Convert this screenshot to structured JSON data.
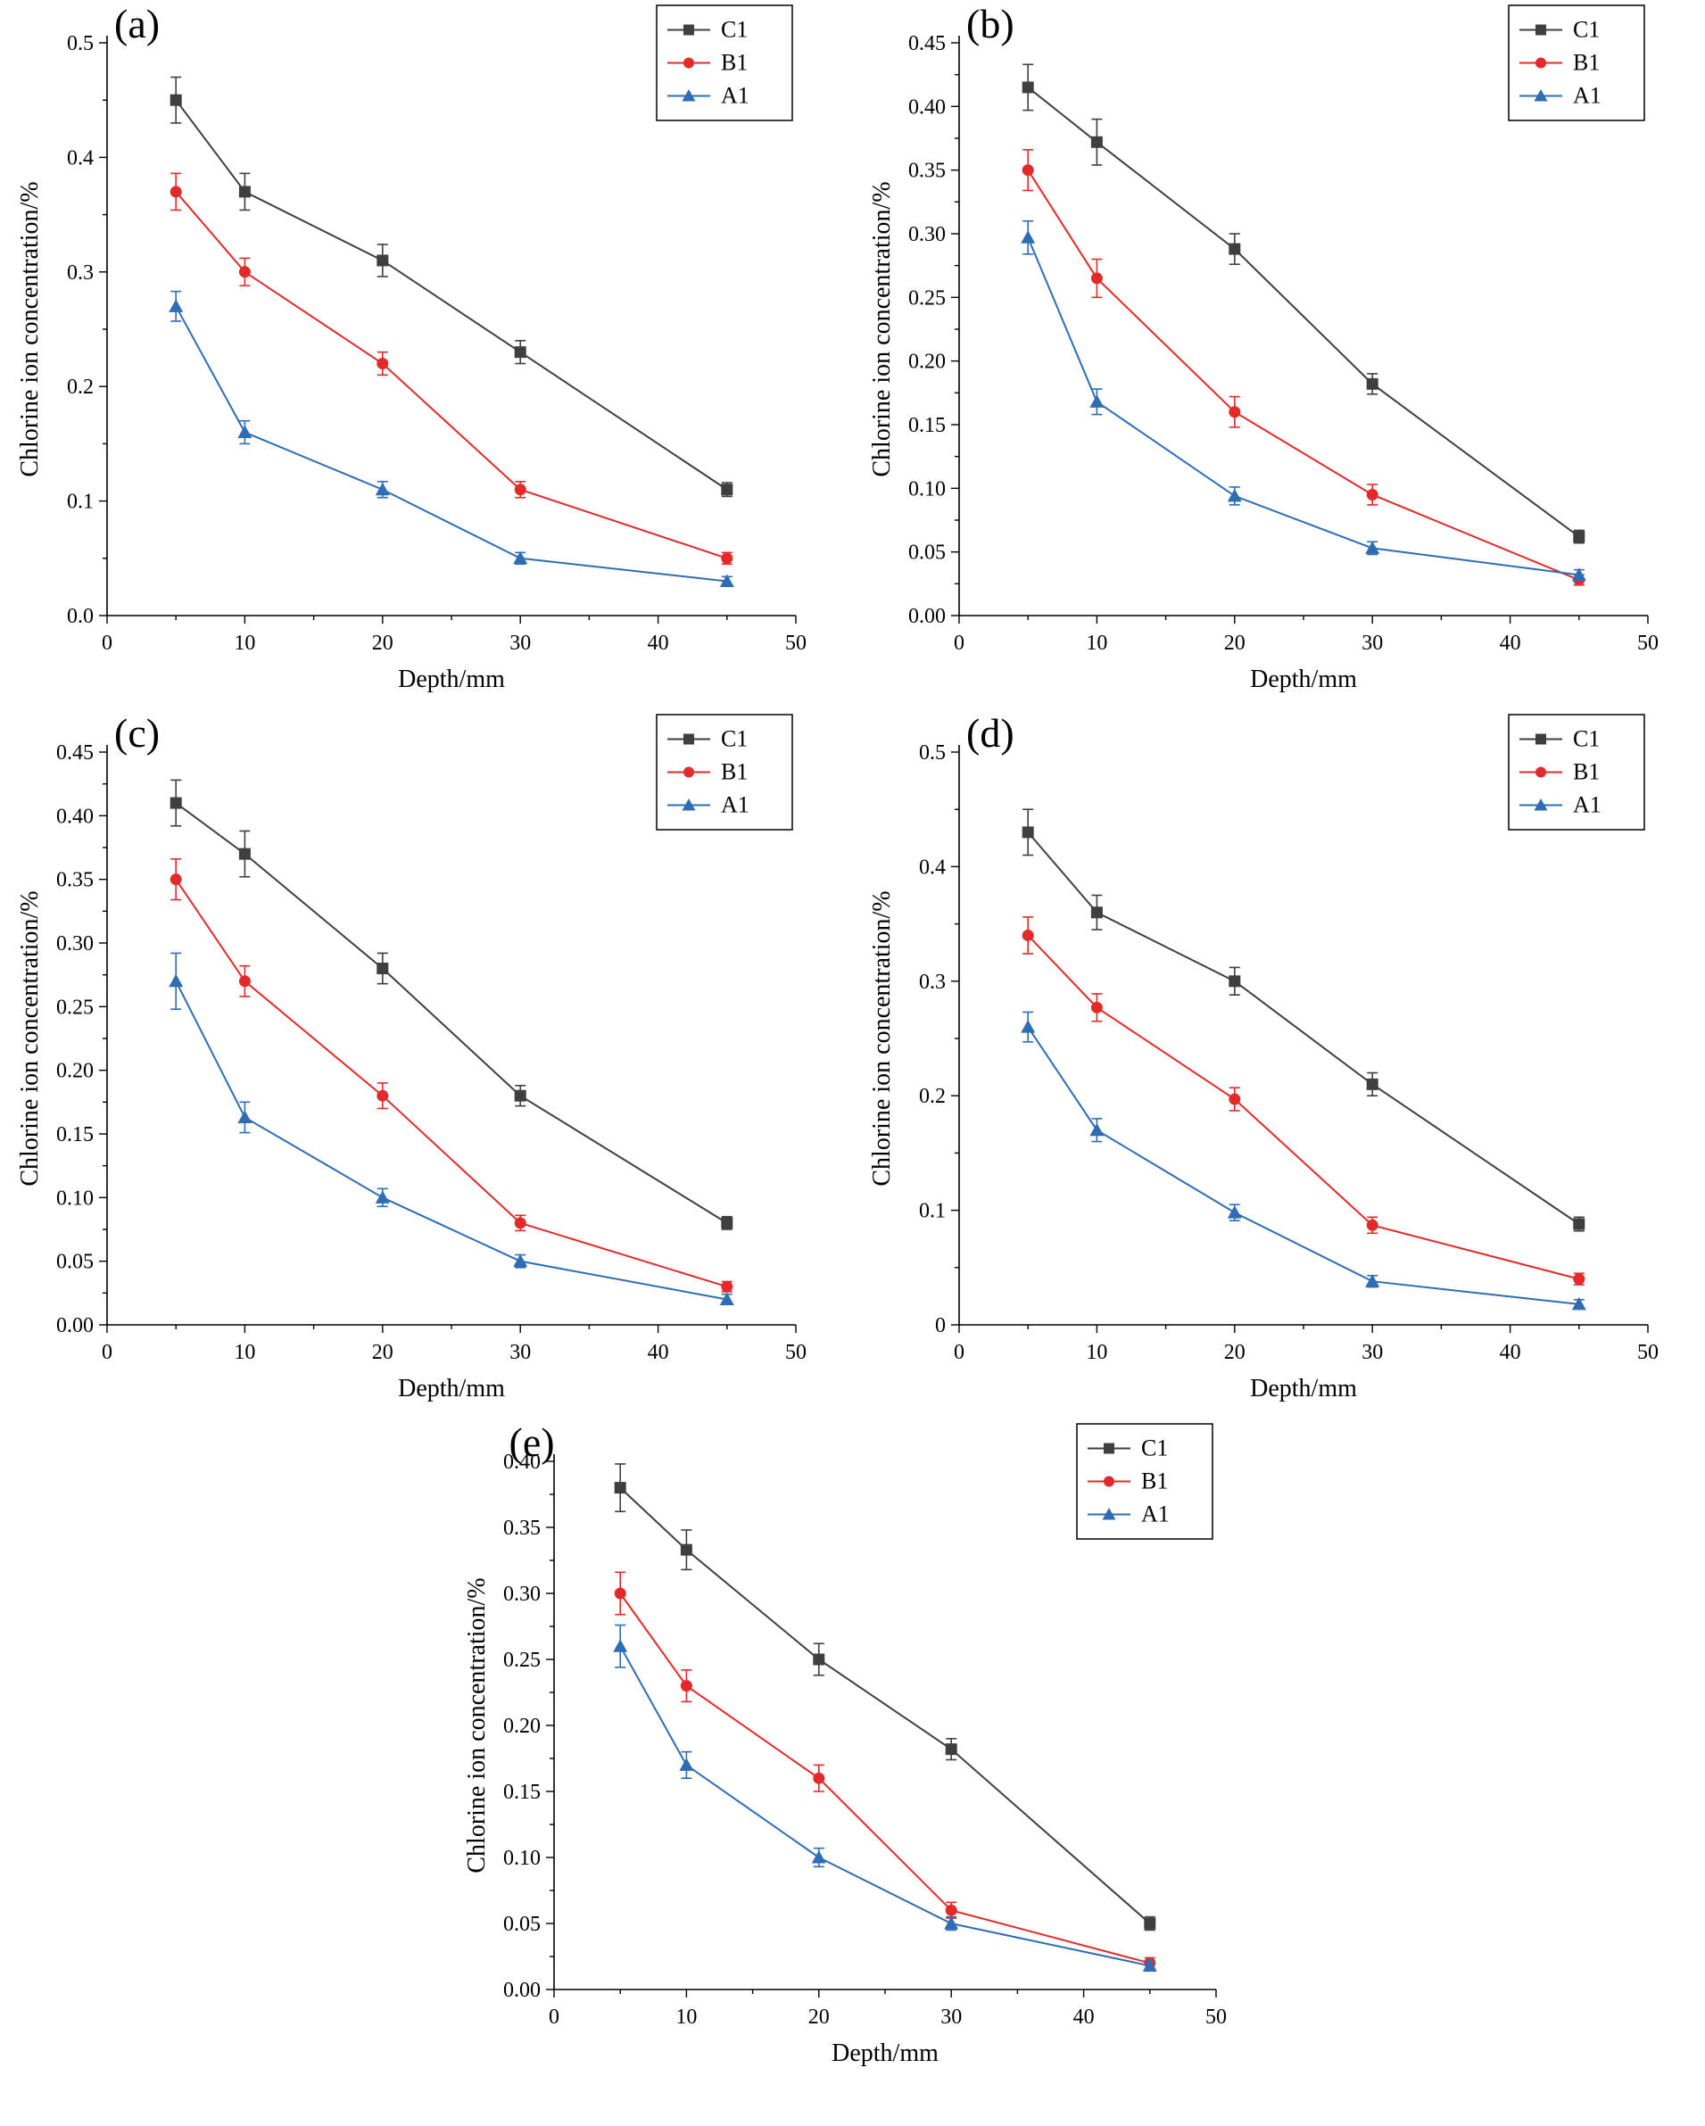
{
  "figure_note": "Chlorine ion concentration vs depth, five panels (a)-(e), series C1/B1/A1 with error bars",
  "colors": {
    "C1": "#3f3f3f",
    "B1": "#e22a2a",
    "A1": "#2e6db4",
    "axis": "#000000"
  },
  "chart_data": [
    {
      "id": "a",
      "panel_label": "(a)",
      "type": "line",
      "xlabel": "Depth/mm",
      "ylabel": "Chlorine ion concentration/%",
      "xlim": [
        0,
        50
      ],
      "ylim": [
        0,
        0.5
      ],
      "xticks": [
        0,
        10,
        20,
        30,
        40,
        50
      ],
      "xtick_labels": [
        "0",
        "10",
        "20",
        "30",
        "40",
        "50"
      ],
      "yticks": [
        0.0,
        0.1,
        0.2,
        0.3,
        0.4,
        0.5
      ],
      "ytick_labels": [
        "0.0",
        "0.1",
        "0.2",
        "0.3",
        "0.4",
        "0.5"
      ],
      "grid": false,
      "legend_position": "top-right",
      "x": [
        5,
        10,
        20,
        30,
        45
      ],
      "series": [
        {
          "name": "C1",
          "marker": "square",
          "color": "#3f3f3f",
          "values": [
            0.45,
            0.37,
            0.31,
            0.23,
            0.11
          ],
          "errors": [
            0.02,
            0.016,
            0.014,
            0.01,
            0.006
          ]
        },
        {
          "name": "B1",
          "marker": "circle",
          "color": "#e22a2a",
          "values": [
            0.37,
            0.3,
            0.22,
            0.11,
            0.05
          ],
          "errors": [
            0.016,
            0.012,
            0.01,
            0.007,
            0.005
          ]
        },
        {
          "name": "A1",
          "marker": "triangle",
          "color": "#2e6db4",
          "values": [
            0.27,
            0.16,
            0.11,
            0.05,
            0.03
          ],
          "errors": [
            0.013,
            0.01,
            0.007,
            0.005,
            0.004
          ]
        }
      ]
    },
    {
      "id": "b",
      "panel_label": "(b)",
      "type": "line",
      "xlabel": "Depth/mm",
      "ylabel": "Chlorine ion concentration/%",
      "xlim": [
        0,
        50
      ],
      "ylim": [
        0,
        0.45
      ],
      "xticks": [
        0,
        10,
        20,
        30,
        40,
        50
      ],
      "xtick_labels": [
        "0",
        "10",
        "20",
        "30",
        "40",
        "50"
      ],
      "yticks": [
        0.0,
        0.05,
        0.1,
        0.15,
        0.2,
        0.25,
        0.3,
        0.35,
        0.4,
        0.45
      ],
      "ytick_labels": [
        "0.00",
        "0.05",
        "0.10",
        "0.15",
        "0.20",
        "0.25",
        "0.30",
        "0.35",
        "0.40",
        "0.45"
      ],
      "grid": false,
      "legend_position": "top-right",
      "x": [
        5,
        10,
        20,
        30,
        45
      ],
      "series": [
        {
          "name": "C1",
          "marker": "square",
          "color": "#3f3f3f",
          "values": [
            0.415,
            0.372,
            0.288,
            0.182,
            0.062
          ],
          "errors": [
            0.018,
            0.018,
            0.012,
            0.008,
            0.005
          ]
        },
        {
          "name": "B1",
          "marker": "circle",
          "color": "#e22a2a",
          "values": [
            0.35,
            0.265,
            0.16,
            0.095,
            0.028
          ],
          "errors": [
            0.016,
            0.015,
            0.012,
            0.008,
            0.004
          ]
        },
        {
          "name": "A1",
          "marker": "triangle",
          "color": "#2e6db4",
          "values": [
            0.297,
            0.168,
            0.094,
            0.053,
            0.032
          ],
          "errors": [
            0.013,
            0.01,
            0.007,
            0.005,
            0.004
          ]
        }
      ]
    },
    {
      "id": "c",
      "panel_label": "(c)",
      "type": "line",
      "xlabel": "Depth/mm",
      "ylabel": "Chlorine ion concentration/%",
      "xlim": [
        0,
        50
      ],
      "ylim": [
        0,
        0.45
      ],
      "xticks": [
        0,
        10,
        20,
        30,
        40,
        50
      ],
      "xtick_labels": [
        "0",
        "10",
        "20",
        "30",
        "40",
        "50"
      ],
      "yticks": [
        0.0,
        0.05,
        0.1,
        0.15,
        0.2,
        0.25,
        0.3,
        0.35,
        0.4,
        0.45
      ],
      "ytick_labels": [
        "0.00",
        "0.05",
        "0.10",
        "0.15",
        "0.20",
        "0.25",
        "0.30",
        "0.35",
        "0.40",
        "0.45"
      ],
      "grid": false,
      "legend_position": "top-right",
      "x": [
        5,
        10,
        20,
        30,
        45
      ],
      "series": [
        {
          "name": "C1",
          "marker": "square",
          "color": "#3f3f3f",
          "values": [
            0.41,
            0.37,
            0.28,
            0.18,
            0.08
          ],
          "errors": [
            0.018,
            0.018,
            0.012,
            0.008,
            0.005
          ]
        },
        {
          "name": "B1",
          "marker": "circle",
          "color": "#e22a2a",
          "values": [
            0.35,
            0.27,
            0.18,
            0.08,
            0.03
          ],
          "errors": [
            0.016,
            0.012,
            0.01,
            0.006,
            0.004
          ]
        },
        {
          "name": "A1",
          "marker": "triangle",
          "color": "#2e6db4",
          "values": [
            0.27,
            0.163,
            0.1,
            0.05,
            0.02
          ],
          "errors": [
            0.022,
            0.012,
            0.007,
            0.005,
            0.004
          ]
        }
      ]
    },
    {
      "id": "d",
      "panel_label": "(d)",
      "type": "line",
      "xlabel": "Depth/mm",
      "ylabel": "Chlorine ion concentration/%",
      "xlim": [
        0,
        50
      ],
      "ylim": [
        0,
        0.5
      ],
      "xticks": [
        0,
        10,
        20,
        30,
        40,
        50
      ],
      "xtick_labels": [
        "0",
        "10",
        "20",
        "30",
        "40",
        "50"
      ],
      "yticks": [
        0.0,
        0.1,
        0.2,
        0.3,
        0.4,
        0.5
      ],
      "ytick_labels": [
        "0",
        "0.1",
        "0.2",
        "0.3",
        "0.4",
        "0.5"
      ],
      "grid": false,
      "legend_position": "top-right",
      "x": [
        5,
        10,
        20,
        30,
        45
      ],
      "series": [
        {
          "name": "C1",
          "marker": "square",
          "color": "#3f3f3f",
          "values": [
            0.43,
            0.36,
            0.3,
            0.21,
            0.088
          ],
          "errors": [
            0.02,
            0.015,
            0.012,
            0.01,
            0.006
          ]
        },
        {
          "name": "B1",
          "marker": "circle",
          "color": "#e22a2a",
          "values": [
            0.34,
            0.277,
            0.197,
            0.087,
            0.04
          ],
          "errors": [
            0.016,
            0.012,
            0.01,
            0.007,
            0.005
          ]
        },
        {
          "name": "A1",
          "marker": "triangle",
          "color": "#2e6db4",
          "values": [
            0.26,
            0.17,
            0.098,
            0.038,
            0.018
          ],
          "errors": [
            0.013,
            0.01,
            0.007,
            0.005,
            0.004
          ]
        }
      ]
    },
    {
      "id": "e",
      "panel_label": "(e)",
      "type": "line",
      "xlabel": "Depth/mm",
      "ylabel": "Chlorine ion concentration/%",
      "xlim": [
        0,
        50
      ],
      "ylim": [
        0,
        0.4
      ],
      "xticks": [
        0,
        10,
        20,
        30,
        40,
        50
      ],
      "xtick_labels": [
        "0",
        "10",
        "20",
        "30",
        "40",
        "50"
      ],
      "yticks": [
        0.0,
        0.05,
        0.1,
        0.15,
        0.2,
        0.25,
        0.3,
        0.35,
        0.4
      ],
      "ytick_labels": [
        "0.00",
        "0.05",
        "0.10",
        "0.15",
        "0.20",
        "0.25",
        "0.30",
        "0.35",
        "0.40"
      ],
      "grid": false,
      "legend_position": "top-right",
      "x": [
        5,
        10,
        20,
        30,
        45
      ],
      "series": [
        {
          "name": "C1",
          "marker": "square",
          "color": "#3f3f3f",
          "values": [
            0.38,
            0.333,
            0.25,
            0.182,
            0.05
          ],
          "errors": [
            0.018,
            0.015,
            0.012,
            0.008,
            0.005
          ]
        },
        {
          "name": "B1",
          "marker": "circle",
          "color": "#e22a2a",
          "values": [
            0.3,
            0.23,
            0.16,
            0.06,
            0.02
          ],
          "errors": [
            0.016,
            0.012,
            0.01,
            0.006,
            0.004
          ]
        },
        {
          "name": "A1",
          "marker": "triangle",
          "color": "#2e6db4",
          "values": [
            0.26,
            0.17,
            0.1,
            0.05,
            0.018
          ],
          "errors": [
            0.016,
            0.01,
            0.007,
            0.005,
            0.004
          ]
        }
      ]
    }
  ]
}
